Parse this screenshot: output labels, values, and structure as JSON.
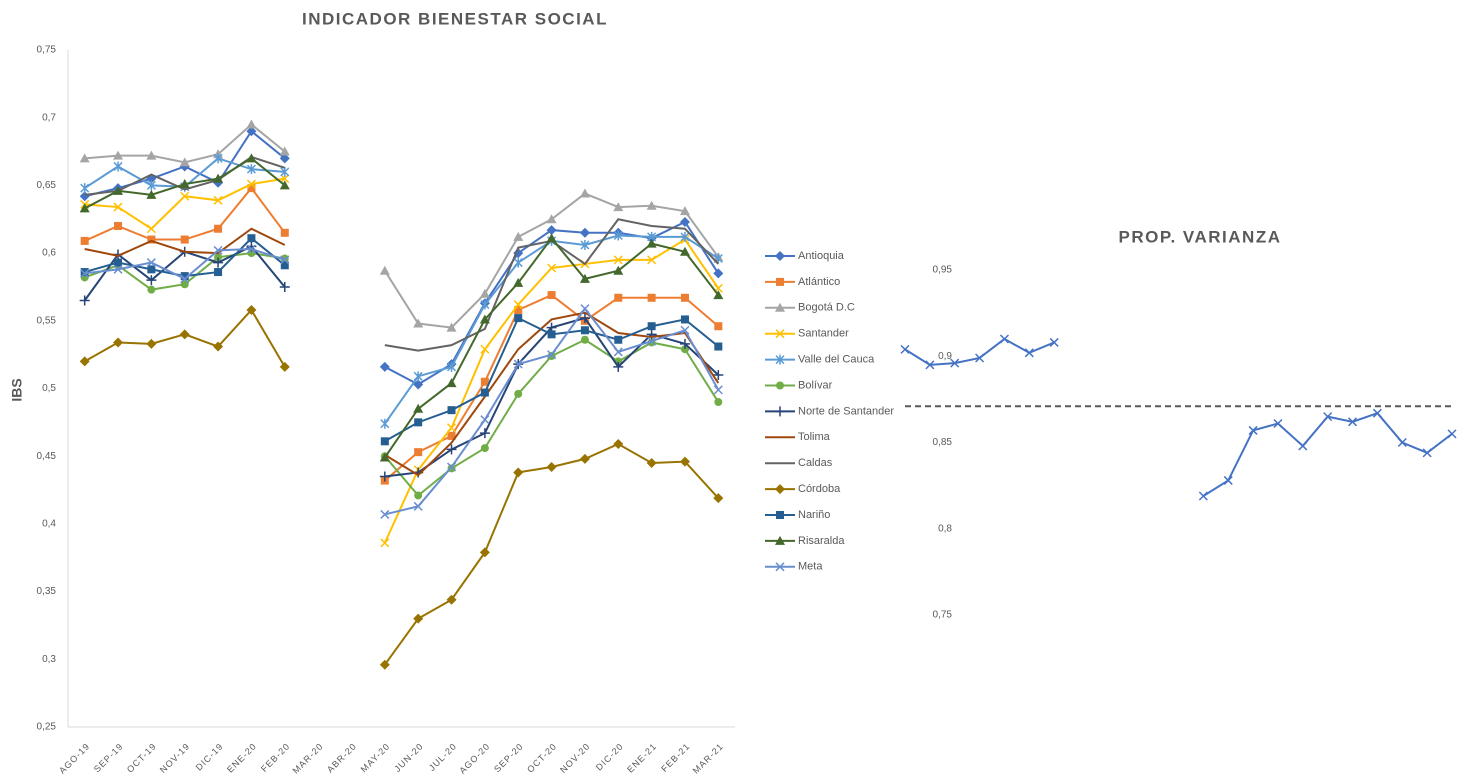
{
  "chart_data": [
    {
      "type": "line",
      "title": "INDICADOR BIENESTAR SOCIAL",
      "y_label": "IBS",
      "categories": [
        "AGO-19",
        "SEP-19",
        "OCT-19",
        "NOV-19",
        "DIC-19",
        "ENE-20",
        "FEB-20",
        "MAR-20",
        "ABR-20",
        "MAY-20",
        "JUN-20",
        "JUL-20",
        "AGO-20",
        "SEP-20",
        "OCT-20",
        "NOV-20",
        "DIC-20",
        "ENE-21",
        "FEB-21",
        "MAR-21"
      ],
      "ylim": [
        0.25,
        0.75
      ],
      "yticks": [
        {
          "value": 0.25,
          "label": "0,25"
        },
        {
          "value": 0.3,
          "label": "0,3"
        },
        {
          "value": 0.35,
          "label": "0,35"
        },
        {
          "value": 0.4,
          "label": "0,4"
        },
        {
          "value": 0.45,
          "label": "0,45"
        },
        {
          "value": 0.5,
          "label": "0,5"
        },
        {
          "value": 0.55,
          "label": "0,55"
        },
        {
          "value": 0.6,
          "label": "0,6"
        },
        {
          "value": 0.65,
          "label": "0,65"
        },
        {
          "value": 0.7,
          "label": "0,7"
        },
        {
          "value": 0.75,
          "label": "0,75"
        }
      ],
      "grid": false,
      "legend": "right",
      "series": [
        {
          "name": "Antioquia",
          "color": "#4472c4",
          "marker": "diamond",
          "values": [
            0.642,
            0.648,
            0.655,
            0.664,
            0.652,
            0.69,
            0.67,
            null,
            null,
            0.516,
            0.503,
            0.518,
            0.563,
            0.6,
            0.617,
            0.615,
            0.615,
            0.611,
            0.623,
            0.585
          ]
        },
        {
          "name": "Atlántico",
          "color": "#ed7d31",
          "marker": "square",
          "values": [
            0.609,
            0.62,
            0.61,
            0.61,
            0.618,
            0.648,
            0.615,
            null,
            null,
            0.432,
            0.453,
            0.465,
            0.505,
            0.558,
            0.569,
            0.55,
            0.567,
            0.567,
            0.567,
            0.546
          ]
        },
        {
          "name": "Bogotá D.C",
          "color": "#a5a5a5",
          "marker": "triangle",
          "values": [
            0.67,
            0.672,
            0.672,
            0.667,
            0.673,
            0.695,
            0.675,
            null,
            null,
            0.587,
            0.548,
            0.545,
            0.57,
            0.612,
            0.625,
            0.644,
            0.634,
            0.635,
            0.631,
            0.597
          ]
        },
        {
          "name": "Santander",
          "color": "#ffc000",
          "marker": "x",
          "values": [
            0.636,
            0.634,
            0.618,
            0.642,
            0.639,
            0.651,
            0.655,
            null,
            null,
            0.386,
            0.44,
            0.471,
            0.529,
            0.562,
            0.589,
            0.592,
            0.595,
            0.595,
            0.61,
            0.574
          ]
        },
        {
          "name": "Valle del Cauca",
          "color": "#5b9bd5",
          "marker": "star",
          "values": [
            0.648,
            0.664,
            0.65,
            0.649,
            0.67,
            0.662,
            0.66,
            null,
            null,
            0.474,
            0.509,
            0.516,
            0.562,
            0.593,
            0.609,
            0.606,
            0.613,
            0.612,
            0.612,
            0.596
          ]
        },
        {
          "name": "Bolívar",
          "color": "#70ad47",
          "marker": "circle",
          "values": [
            0.582,
            0.591,
            0.573,
            0.577,
            0.597,
            0.6,
            0.596,
            null,
            null,
            0.45,
            0.421,
            0.441,
            0.456,
            0.496,
            0.524,
            0.536,
            0.52,
            0.534,
            0.529,
            0.49
          ]
        },
        {
          "name": "Norte de Santander",
          "color": "#264478",
          "marker": "plus",
          "values": [
            0.565,
            0.599,
            0.58,
            0.601,
            0.593,
            0.605,
            0.575,
            null,
            null,
            0.435,
            0.438,
            0.455,
            0.467,
            0.518,
            0.545,
            0.552,
            0.516,
            0.54,
            0.533,
            0.51
          ]
        },
        {
          "name": "Tolima",
          "color": "#9e480e",
          "marker": "none",
          "values": [
            0.603,
            0.598,
            0.609,
            0.601,
            0.6,
            0.618,
            0.606,
            null,
            null,
            0.451,
            0.436,
            0.46,
            0.494,
            0.529,
            0.551,
            0.556,
            0.541,
            0.538,
            0.541,
            0.504
          ]
        },
        {
          "name": "Caldas",
          "color": "#636363",
          "marker": "none",
          "values": [
            0.643,
            0.646,
            0.658,
            0.647,
            0.654,
            0.671,
            0.663,
            null,
            null,
            0.532,
            0.528,
            0.532,
            0.544,
            0.604,
            0.609,
            0.592,
            0.625,
            0.62,
            0.618,
            0.592
          ]
        },
        {
          "name": "Córdoba",
          "color": "#997300",
          "marker": "diamond",
          "values": [
            0.52,
            0.534,
            0.533,
            0.54,
            0.531,
            0.558,
            0.516,
            null,
            null,
            0.296,
            0.33,
            0.344,
            0.379,
            0.438,
            0.442,
            0.448,
            0.459,
            0.445,
            0.446,
            0.419
          ]
        },
        {
          "name": "Nariño",
          "color": "#255e91",
          "marker": "square",
          "values": [
            0.586,
            0.593,
            0.588,
            0.583,
            0.586,
            0.611,
            0.591,
            null,
            null,
            0.461,
            0.475,
            0.484,
            0.497,
            0.552,
            0.54,
            0.543,
            0.536,
            0.546,
            0.551,
            0.531
          ]
        },
        {
          "name": "Risaralda",
          "color": "#43682b",
          "marker": "triangle",
          "values": [
            0.633,
            0.646,
            0.643,
            0.651,
            0.655,
            0.67,
            0.65,
            null,
            null,
            0.449,
            0.485,
            0.504,
            0.551,
            0.578,
            0.611,
            0.581,
            0.587,
            0.607,
            0.601,
            0.569
          ]
        },
        {
          "name": "Meta",
          "color": "#698ed0",
          "marker": "x",
          "values": [
            0.585,
            0.588,
            0.593,
            0.581,
            0.602,
            0.603,
            0.595,
            null,
            null,
            0.407,
            0.413,
            0.442,
            0.477,
            0.518,
            0.525,
            0.559,
            0.527,
            0.535,
            0.543,
            0.499
          ]
        }
      ]
    },
    {
      "type": "line",
      "title": "PROP. VARIANZA",
      "ylim": [
        0.75,
        0.95
      ],
      "yticks": [
        {
          "value": 0.75,
          "label": "0,75"
        },
        {
          "value": 0.8,
          "label": "0,8"
        },
        {
          "value": 0.85,
          "label": "0,85"
        },
        {
          "value": 0.9,
          "label": "0,9"
        },
        {
          "value": 0.95,
          "label": "0,95"
        }
      ],
      "grid": false,
      "reference_line": 0.871,
      "reference_color": "#595959",
      "color": "#4472c4",
      "marker": "x",
      "values": [
        0.904,
        0.895,
        0.896,
        0.899,
        0.91,
        0.902,
        0.908,
        null,
        null,
        null,
        null,
        null,
        0.819,
        0.828,
        0.857,
        0.861,
        0.848,
        0.865,
        0.862,
        0.867,
        0.85,
        0.844,
        0.855
      ]
    }
  ]
}
